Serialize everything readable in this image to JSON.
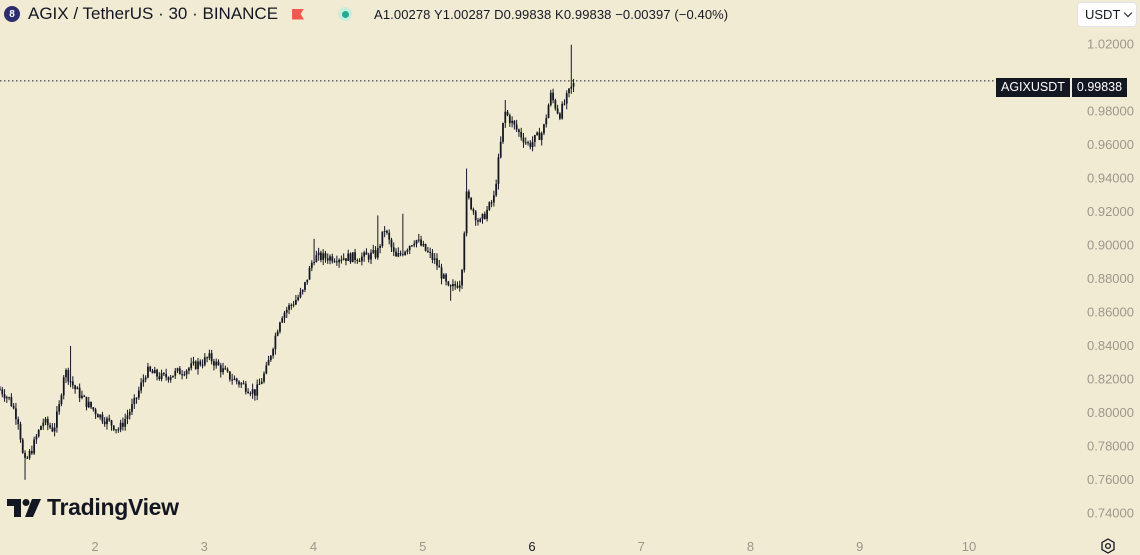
{
  "header": {
    "symbol_title": "AGIX / TetherUS · 30 · BINANCE",
    "coin_icon_text": "8",
    "ohlc_text": "A1.00278 Y1.00287 D0.99838 K0.99838 −0.00397 (−0.40%)"
  },
  "currency_select": {
    "value": "USDT"
  },
  "price_line": {
    "symbol": "AGIXUSDT",
    "price": "0.99838"
  },
  "watermark": {
    "text": "TradingView"
  },
  "colors": {
    "background": "#f2ebd4",
    "candle": "#131722",
    "axis_text": "#9b9889",
    "flag": "#f05a4e",
    "live_dot": "#22ab94"
  },
  "chart_data": {
    "type": "candlestick",
    "last_price": 0.99838,
    "ylim": [
      0.73,
      1.03
    ],
    "y_ticks": [
      "1.02000",
      "0.98000",
      "0.96000",
      "0.94000",
      "0.92000",
      "0.90000",
      "0.88000",
      "0.86000",
      "0.84000",
      "0.82000",
      "0.80000",
      "0.78000",
      "0.76000",
      "0.74000"
    ],
    "x_ticks": [
      "2",
      "3",
      "4",
      "5",
      "6",
      "7",
      "8",
      "9",
      "10"
    ],
    "x_tick_days": [
      2,
      3,
      4,
      5,
      6,
      7,
      8,
      9,
      10
    ],
    "x_range_days": [
      1.13,
      10.97
    ],
    "close_path": [
      [
        1.13,
        0.814
      ],
      [
        1.22,
        0.808
      ],
      [
        1.3,
        0.795
      ],
      [
        1.35,
        0.769
      ],
      [
        1.42,
        0.778
      ],
      [
        1.52,
        0.795
      ],
      [
        1.62,
        0.79
      ],
      [
        1.67,
        0.803
      ],
      [
        1.72,
        0.826
      ],
      [
        1.81,
        0.815
      ],
      [
        1.92,
        0.806
      ],
      [
        2.05,
        0.798
      ],
      [
        2.22,
        0.79
      ],
      [
        2.36,
        0.806
      ],
      [
        2.47,
        0.825
      ],
      [
        2.62,
        0.821
      ],
      [
        2.87,
        0.827
      ],
      [
        3.05,
        0.833
      ],
      [
        3.22,
        0.822
      ],
      [
        3.47,
        0.812
      ],
      [
        3.57,
        0.826
      ],
      [
        3.7,
        0.858
      ],
      [
        3.9,
        0.872
      ],
      [
        4.0,
        0.893
      ],
      [
        4.25,
        0.893
      ],
      [
        4.45,
        0.893
      ],
      [
        4.58,
        0.895
      ],
      [
        4.65,
        0.91
      ],
      [
        4.75,
        0.892
      ],
      [
        4.93,
        0.904
      ],
      [
        5.12,
        0.89
      ],
      [
        5.24,
        0.873
      ],
      [
        5.35,
        0.879
      ],
      [
        5.4,
        0.93
      ],
      [
        5.52,
        0.913
      ],
      [
        5.65,
        0.928
      ],
      [
        5.75,
        0.98
      ],
      [
        5.85,
        0.97
      ],
      [
        5.97,
        0.96
      ],
      [
        6.1,
        0.968
      ],
      [
        6.17,
        0.99
      ],
      [
        6.25,
        0.978
      ],
      [
        6.35,
        0.993
      ],
      [
        6.4,
        0.998
      ]
    ],
    "wick_peaks": [
      [
        1.35,
        0.76
      ],
      [
        1.77,
        0.84
      ],
      [
        4.0,
        0.904
      ],
      [
        4.58,
        0.918
      ],
      [
        4.82,
        0.919
      ],
      [
        5.26,
        0.867
      ],
      [
        5.41,
        0.946
      ],
      [
        5.75,
        0.987
      ],
      [
        6.36,
        1.02
      ]
    ]
  }
}
